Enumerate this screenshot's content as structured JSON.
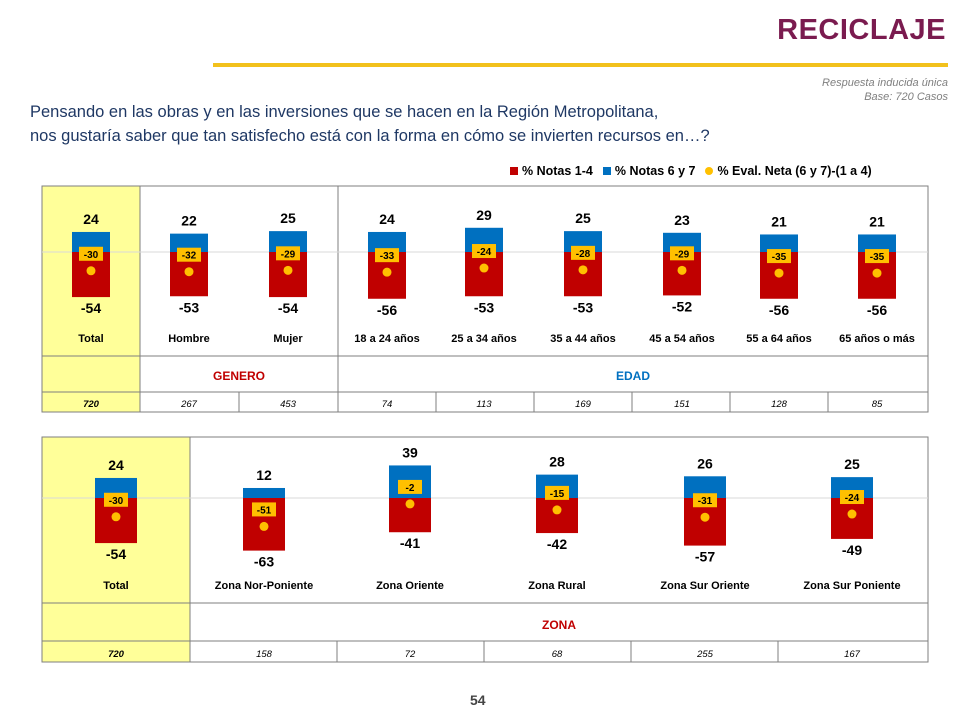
{
  "header": {
    "title": "RECICLAJE",
    "response_type": "Respuesta inducida única",
    "base": "Base: 720 Casos",
    "question_line1": "Pensando en las obras y en las inversiones que se hacen en la Región Metropolitana,",
    "question_line2": "nos gustaría saber que tan satisfecho está con la forma en cómo se invierten recursos en…?",
    "page_number": "54"
  },
  "legend": {
    "neg": "% Notas 1-4",
    "pos": "% Notas 6 y 7",
    "net": "% Eval. Neta (6 y 7)-(1 a 4)"
  },
  "colors": {
    "neg": "#c00000",
    "pos": "#0070c0",
    "net": "#ffc000",
    "highlight": "#ffff99",
    "group_label": "#c00000",
    "group_label_blue": "#0070c0",
    "title": "#7a1b4f",
    "rule": "#f2c11c"
  },
  "chart_data": [
    {
      "type": "bar",
      "categories": [
        "Total",
        "Hombre",
        "Mujer",
        "18 a 24 años",
        "25 a 34 años",
        "35 a 44 años",
        "45 a 54 años",
        "55 a 64 años",
        "65 años o más"
      ],
      "series": [
        {
          "name": "% Notas 1-4",
          "values": [
            -54,
            -53,
            -54,
            -56,
            -53,
            -53,
            -52,
            -56,
            -56
          ]
        },
        {
          "name": "% Notas 6 y 7",
          "values": [
            24,
            22,
            25,
            24,
            29,
            25,
            23,
            21,
            21
          ]
        },
        {
          "name": "% Eval. Neta (6 y 7)-(1 a 4)",
          "values": [
            -30,
            -32,
            -29,
            -33,
            -24,
            -28,
            -29,
            -35,
            -35
          ]
        }
      ],
      "groups": [
        "GENERO",
        "EDAD"
      ],
      "bases": [
        "720",
        "267",
        "453",
        "74",
        "113",
        "169",
        "151",
        "128",
        "85"
      ]
    },
    {
      "type": "bar",
      "categories": [
        "Total",
        "Zona Nor-Poniente",
        "Zona Oriente",
        "Zona Rural",
        "Zona Sur Oriente",
        "Zona Sur Poniente"
      ],
      "series": [
        {
          "name": "% Notas 1-4",
          "values": [
            -54,
            -63,
            -41,
            -42,
            -57,
            -49
          ]
        },
        {
          "name": "% Notas 6 y 7",
          "values": [
            24,
            12,
            39,
            28,
            26,
            25
          ]
        },
        {
          "name": "% Eval. Neta (6 y 7)-(1 a 4)",
          "values": [
            -30,
            -51,
            -2,
            -15,
            -31,
            -24
          ]
        }
      ],
      "groups": [
        "ZONA"
      ],
      "bases": [
        "720",
        "158",
        "72",
        "68",
        "255",
        "167"
      ]
    }
  ]
}
